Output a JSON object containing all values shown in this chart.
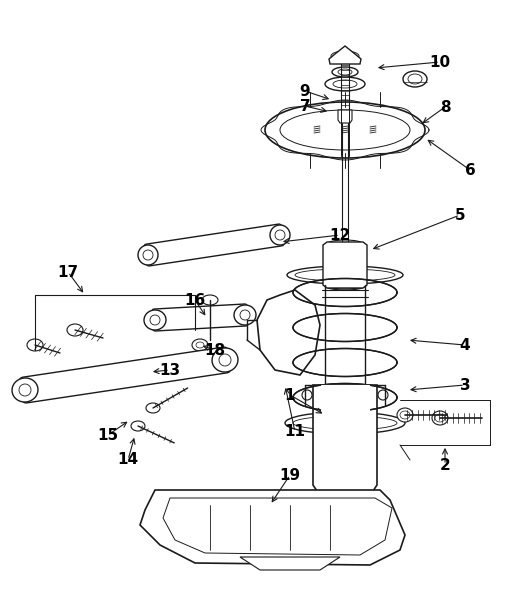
{
  "background_color": "#ffffff",
  "line_color": "#1a1a1a",
  "label_color": "#000000",
  "fig_width": 5.21,
  "fig_height": 5.89
}
